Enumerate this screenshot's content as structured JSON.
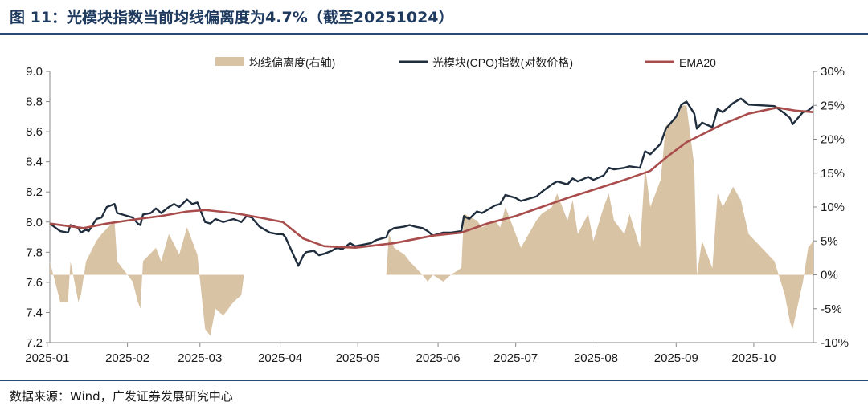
{
  "header": {
    "title": "图 11：光模块指数当前均线偏离度为4.7%（截至20251024）"
  },
  "footer": {
    "source": "数据来源：Wind，广发证券发展研究中心"
  },
  "colors": {
    "deviation_fill": "#d9c3a5",
    "index_line": "#1f2d3d",
    "ema_line": "#a94c4c",
    "header_rule": "#2b4a78",
    "title_text": "#1f3a5f"
  },
  "chart_data": {
    "type": "line",
    "legend": {
      "position": "top",
      "items": [
        {
          "label": "均线偏离度(右轴)",
          "kind": "area"
        },
        {
          "label": "光模块(CPO)指数(对数价格)",
          "kind": "line"
        },
        {
          "label": "EMA20",
          "kind": "line"
        }
      ]
    },
    "x_ticks": [
      "2025-01",
      "2025-02",
      "2025-03",
      "2025-04",
      "2025-05",
      "2025-06",
      "2025-07",
      "2025-08",
      "2025-09",
      "2025-10"
    ],
    "x_range": [
      "2025-01-02",
      "2025-10-24"
    ],
    "y_left": {
      "min": 7.2,
      "max": 9.0,
      "ticks": [
        "9.0",
        "8.8",
        "8.6",
        "8.4",
        "8.2",
        "8.0",
        "7.8",
        "7.6",
        "7.4",
        "7.2"
      ]
    },
    "y_right": {
      "min": -10,
      "max": 30,
      "ticks": [
        "30%",
        "25%",
        "20%",
        "15%",
        "10%",
        "5%",
        "0%",
        "-5%",
        "-10%"
      ]
    },
    "grid": false,
    "series": [
      {
        "name": "光模块(CPO)指数(对数价格)",
        "axis": "left",
        "kind": "line",
        "points": [
          [
            "2025-01-02",
            7.99
          ],
          [
            "2025-01-06",
            7.94
          ],
          [
            "2025-01-09",
            7.93
          ],
          [
            "2025-01-10",
            7.98
          ],
          [
            "2025-01-13",
            7.96
          ],
          [
            "2025-01-14",
            7.93
          ],
          [
            "2025-01-16",
            7.95
          ],
          [
            "2025-01-17",
            7.94
          ],
          [
            "2025-01-20",
            8.02
          ],
          [
            "2025-01-22",
            8.03
          ],
          [
            "2025-01-24",
            8.1
          ],
          [
            "2025-01-27",
            8.12
          ],
          [
            "2025-01-28",
            8.06
          ],
          [
            "2025-02-03",
            8.03
          ],
          [
            "2025-02-05",
            7.99
          ],
          [
            "2025-02-06",
            7.98
          ],
          [
            "2025-02-07",
            8.05
          ],
          [
            "2025-02-10",
            8.06
          ],
          [
            "2025-02-12",
            8.09
          ],
          [
            "2025-02-14",
            8.06
          ],
          [
            "2025-02-17",
            8.1
          ],
          [
            "2025-02-19",
            8.12
          ],
          [
            "2025-02-21",
            8.1
          ],
          [
            "2025-02-24",
            8.15
          ],
          [
            "2025-02-26",
            8.12
          ],
          [
            "2025-02-28",
            8.13
          ],
          [
            "2025-03-03",
            8.0
          ],
          [
            "2025-03-05",
            7.99
          ],
          [
            "2025-03-07",
            8.02
          ],
          [
            "2025-03-10",
            8.0
          ],
          [
            "2025-03-12",
            8.01
          ],
          [
            "2025-03-14",
            8.02
          ],
          [
            "2025-03-17",
            8.0
          ],
          [
            "2025-03-19",
            8.04
          ],
          [
            "2025-03-21",
            8.03
          ],
          [
            "2025-03-24",
            7.97
          ],
          [
            "2025-03-26",
            7.95
          ],
          [
            "2025-03-28",
            7.93
          ],
          [
            "2025-03-31",
            7.92
          ],
          [
            "2025-04-02",
            7.92
          ],
          [
            "2025-04-03",
            7.9
          ],
          [
            "2025-04-07",
            7.75
          ],
          [
            "2025-04-08",
            7.71
          ],
          [
            "2025-04-10",
            7.78
          ],
          [
            "2025-04-11",
            7.8
          ],
          [
            "2025-04-14",
            7.81
          ],
          [
            "2025-04-16",
            7.78
          ],
          [
            "2025-04-18",
            7.79
          ],
          [
            "2025-04-21",
            7.81
          ],
          [
            "2025-04-23",
            7.83
          ],
          [
            "2025-04-25",
            7.82
          ],
          [
            "2025-04-28",
            7.86
          ],
          [
            "2025-04-30",
            7.84
          ],
          [
            "2025-05-06",
            7.86
          ],
          [
            "2025-05-08",
            7.88
          ],
          [
            "2025-05-12",
            7.9
          ],
          [
            "2025-05-13",
            7.94
          ],
          [
            "2025-05-15",
            7.96
          ],
          [
            "2025-05-19",
            7.97
          ],
          [
            "2025-05-21",
            7.98
          ],
          [
            "2025-05-23",
            7.97
          ],
          [
            "2025-05-26",
            7.96
          ],
          [
            "2025-05-28",
            7.94
          ],
          [
            "2025-05-30",
            7.91
          ],
          [
            "2025-06-03",
            7.93
          ],
          [
            "2025-06-06",
            7.93
          ],
          [
            "2025-06-10",
            7.94
          ],
          [
            "2025-06-11",
            8.04
          ],
          [
            "2025-06-13",
            8.02
          ],
          [
            "2025-06-16",
            8.07
          ],
          [
            "2025-06-18",
            8.06
          ],
          [
            "2025-06-20",
            8.08
          ],
          [
            "2025-06-23",
            8.11
          ],
          [
            "2025-06-25",
            8.12
          ],
          [
            "2025-06-27",
            8.18
          ],
          [
            "2025-07-01",
            8.16
          ],
          [
            "2025-07-03",
            8.14
          ],
          [
            "2025-07-07",
            8.16
          ],
          [
            "2025-07-09",
            8.17
          ],
          [
            "2025-07-11",
            8.2
          ],
          [
            "2025-07-15",
            8.25
          ],
          [
            "2025-07-17",
            8.27
          ],
          [
            "2025-07-21",
            8.25
          ],
          [
            "2025-07-23",
            8.29
          ],
          [
            "2025-07-25",
            8.27
          ],
          [
            "2025-07-29",
            8.3
          ],
          [
            "2025-07-31",
            8.28
          ],
          [
            "2025-08-04",
            8.31
          ],
          [
            "2025-08-06",
            8.36
          ],
          [
            "2025-08-08",
            8.35
          ],
          [
            "2025-08-12",
            8.36
          ],
          [
            "2025-08-14",
            8.37
          ],
          [
            "2025-08-18",
            8.36
          ],
          [
            "2025-08-20",
            8.47
          ],
          [
            "2025-08-22",
            8.45
          ],
          [
            "2025-08-26",
            8.52
          ],
          [
            "2025-08-28",
            8.62
          ],
          [
            "2025-09-01",
            8.7
          ],
          [
            "2025-09-03",
            8.78
          ],
          [
            "2025-09-05",
            8.8
          ],
          [
            "2025-09-08",
            8.72
          ],
          [
            "2025-09-09",
            8.62
          ],
          [
            "2025-09-11",
            8.66
          ],
          [
            "2025-09-15",
            8.63
          ],
          [
            "2025-09-17",
            8.75
          ],
          [
            "2025-09-19",
            8.73
          ],
          [
            "2025-09-23",
            8.79
          ],
          [
            "2025-09-26",
            8.82
          ],
          [
            "2025-09-29",
            8.78
          ],
          [
            "2025-10-09",
            8.77
          ],
          [
            "2025-10-13",
            8.72
          ],
          [
            "2025-10-15",
            8.69
          ],
          [
            "2025-10-16",
            8.65
          ],
          [
            "2025-10-20",
            8.73
          ],
          [
            "2025-10-22",
            8.74
          ],
          [
            "2025-10-24",
            8.77
          ]
        ]
      },
      {
        "name": "EMA20",
        "axis": "left",
        "kind": "line",
        "points": [
          [
            "2025-01-02",
            7.99
          ],
          [
            "2025-01-15",
            7.96
          ],
          [
            "2025-01-24",
            7.99
          ],
          [
            "2025-02-05",
            8.02
          ],
          [
            "2025-02-14",
            8.04
          ],
          [
            "2025-02-24",
            8.07
          ],
          [
            "2025-03-03",
            8.08
          ],
          [
            "2025-03-14",
            8.06
          ],
          [
            "2025-03-24",
            8.03
          ],
          [
            "2025-04-02",
            8.0
          ],
          [
            "2025-04-10",
            7.89
          ],
          [
            "2025-04-18",
            7.84
          ],
          [
            "2025-04-30",
            7.83
          ],
          [
            "2025-05-15",
            7.86
          ],
          [
            "2025-05-30",
            7.91
          ],
          [
            "2025-06-10",
            7.93
          ],
          [
            "2025-06-20",
            7.99
          ],
          [
            "2025-07-01",
            8.04
          ],
          [
            "2025-07-11",
            8.1
          ],
          [
            "2025-07-21",
            8.16
          ],
          [
            "2025-08-01",
            8.22
          ],
          [
            "2025-08-12",
            8.28
          ],
          [
            "2025-08-22",
            8.34
          ],
          [
            "2025-08-29",
            8.44
          ],
          [
            "2025-09-05",
            8.53
          ],
          [
            "2025-09-12",
            8.59
          ],
          [
            "2025-09-19",
            8.65
          ],
          [
            "2025-09-29",
            8.72
          ],
          [
            "2025-10-10",
            8.76
          ],
          [
            "2025-10-17",
            8.74
          ],
          [
            "2025-10-24",
            8.73
          ]
        ]
      },
      {
        "name": "均线偏离度(右轴)",
        "axis": "right",
        "kind": "area",
        "points": [
          [
            "2025-01-02",
            2
          ],
          [
            "2025-01-06",
            -4
          ],
          [
            "2025-01-09",
            -4
          ],
          [
            "2025-01-10",
            2
          ],
          [
            "2025-01-13",
            -4
          ],
          [
            "2025-01-14",
            -3
          ],
          [
            "2025-01-16",
            2
          ],
          [
            "2025-01-20",
            5
          ],
          [
            "2025-01-22",
            6
          ],
          [
            "2025-01-27",
            8
          ],
          [
            "2025-01-28",
            2
          ],
          [
            "2025-02-03",
            -1
          ],
          [
            "2025-02-05",
            -4
          ],
          [
            "2025-02-06",
            -5
          ],
          [
            "2025-02-07",
            2
          ],
          [
            "2025-02-12",
            4
          ],
          [
            "2025-02-14",
            2
          ],
          [
            "2025-02-17",
            6
          ],
          [
            "2025-02-21",
            3
          ],
          [
            "2025-02-24",
            7
          ],
          [
            "2025-02-28",
            3
          ],
          [
            "2025-03-03",
            -8
          ],
          [
            "2025-03-05",
            -9
          ],
          [
            "2025-03-07",
            -5
          ],
          [
            "2025-03-10",
            -6
          ],
          [
            "2025-03-14",
            -4
          ],
          [
            "2025-03-17",
            -3
          ],
          [
            "2025-03-18",
            0
          ],
          [
            "2025-05-12",
            0
          ],
          [
            "2025-05-13",
            6
          ],
          [
            "2025-05-15",
            4
          ],
          [
            "2025-05-19",
            3
          ],
          [
            "2025-05-21",
            2
          ],
          [
            "2025-05-26",
            0
          ],
          [
            "2025-05-28",
            -1
          ],
          [
            "2025-05-30",
            0
          ],
          [
            "2025-06-03",
            -1
          ],
          [
            "2025-06-06",
            0
          ],
          [
            "2025-06-10",
            1
          ],
          [
            "2025-06-11",
            9
          ],
          [
            "2025-06-16",
            8
          ],
          [
            "2025-06-18",
            7
          ],
          [
            "2025-06-23",
            8
          ],
          [
            "2025-06-25",
            7
          ],
          [
            "2025-06-27",
            10
          ],
          [
            "2025-07-01",
            6
          ],
          [
            "2025-07-03",
            4
          ],
          [
            "2025-07-09",
            8
          ],
          [
            "2025-07-11",
            9
          ],
          [
            "2025-07-15",
            10
          ],
          [
            "2025-07-17",
            12
          ],
          [
            "2025-07-21",
            8
          ],
          [
            "2025-07-23",
            11
          ],
          [
            "2025-07-25",
            6
          ],
          [
            "2025-07-29",
            9
          ],
          [
            "2025-07-31",
            5
          ],
          [
            "2025-08-04",
            10
          ],
          [
            "2025-08-06",
            12
          ],
          [
            "2025-08-08",
            8
          ],
          [
            "2025-08-12",
            6
          ],
          [
            "2025-08-14",
            9
          ],
          [
            "2025-08-18",
            4
          ],
          [
            "2025-08-20",
            16
          ],
          [
            "2025-08-22",
            10
          ],
          [
            "2025-08-26",
            14
          ],
          [
            "2025-08-28",
            22
          ],
          [
            "2025-09-01",
            23
          ],
          [
            "2025-09-03",
            25
          ],
          [
            "2025-09-05",
            25
          ],
          [
            "2025-09-08",
            16
          ],
          [
            "2025-09-09",
            0
          ],
          [
            "2025-09-11",
            5
          ],
          [
            "2025-09-15",
            1
          ],
          [
            "2025-09-17",
            12
          ],
          [
            "2025-09-19",
            10
          ],
          [
            "2025-09-23",
            13
          ],
          [
            "2025-09-26",
            11
          ],
          [
            "2025-09-29",
            6
          ],
          [
            "2025-10-09",
            2
          ],
          [
            "2025-10-13",
            -3
          ],
          [
            "2025-10-15",
            -7
          ],
          [
            "2025-10-16",
            -8
          ],
          [
            "2025-10-20",
            -1
          ],
          [
            "2025-10-22",
            4
          ],
          [
            "2025-10-24",
            5
          ]
        ]
      }
    ]
  }
}
